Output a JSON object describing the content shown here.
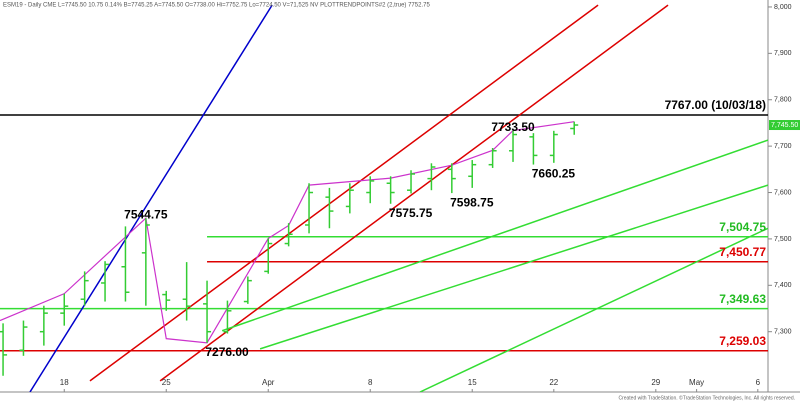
{
  "chart_data": {
    "type": "ohlc",
    "title": "ESM19 - Daily CME L=7745.50 10.75 0.14% B=7745.25 A=7745.50 O=7738.00 Hi=7752.75 Lo=7724.50 V=71,525 NV PLOTTRENDPOINTS#2 (2,true) 7752.75",
    "footer": "Created with TradeStation. ©TradeStation Technologies, Inc. All rights reserved.",
    "color": "#33cc33",
    "xlim": [
      -0.15,
      37.5
    ],
    "ylim": [
      7170,
      8015
    ],
    "xticks": [
      {
        "value": 3,
        "label": "18"
      },
      {
        "value": 8,
        "label": "25"
      },
      {
        "value": 13,
        "label": "Apr"
      },
      {
        "value": 18,
        "label": "8"
      },
      {
        "value": 23,
        "label": "15"
      },
      {
        "value": 27,
        "label": "22"
      },
      {
        "value": 32,
        "label": "29"
      },
      {
        "value": 34,
        "label": "May"
      },
      {
        "value": 37,
        "label": "6"
      }
    ],
    "yticks": [
      {
        "value": 8000,
        "label": "8,000"
      },
      {
        "value": 7900,
        "label": "7,900"
      },
      {
        "value": 7800,
        "label": "7,800"
      },
      {
        "value": 7700,
        "label": "7,700"
      },
      {
        "value": 7600,
        "label": "7,600"
      },
      {
        "value": 7500,
        "label": "7,500"
      },
      {
        "value": 7400,
        "label": "7,400"
      },
      {
        "value": 7300,
        "label": "7,300"
      }
    ],
    "x": [
      0,
      1,
      2,
      3,
      4,
      5,
      6,
      7,
      8,
      9,
      10,
      11,
      12,
      13,
      14,
      15,
      16,
      17,
      18,
      19,
      20,
      21,
      22,
      23,
      24,
      25,
      26,
      27,
      28
    ],
    "open": [
      7300,
      7260,
      7300,
      7340,
      7370,
      7405,
      7440,
      7470,
      7380,
      7370,
      7360,
      7300,
      7365,
      7430,
      7490,
      7530,
      7590,
      7570,
      7600,
      7620,
      7605,
      7630,
      7650,
      7635,
      7660,
      7690,
      7720,
      7680,
      7738
    ],
    "high": [
      7318,
      7324,
      7356,
      7382,
      7430,
      7452,
      7527,
      7544.75,
      7388,
      7450,
      7410,
      7367,
      7419,
      7501,
      7534,
      7620,
      7610,
      7620,
      7635,
      7635,
      7648,
      7663,
      7663,
      7670,
      7696,
      7733.5,
      7728,
      7733,
      7752.75
    ],
    "low": [
      7205,
      7248,
      7270,
      7313,
      7356,
      7365,
      7365,
      7356,
      7345,
      7324,
      7276,
      7296,
      7360,
      7425,
      7484,
      7512,
      7523,
      7555,
      7577,
      7575.75,
      7598,
      7605,
      7598.75,
      7610,
      7653,
      7666,
      7660.25,
      7664,
      7724.5
    ],
    "close": [
      7250,
      7310,
      7340,
      7355,
      7410,
      7445,
      7385,
      7530,
      7368,
      7355,
      7300,
      7345,
      7410,
      7490,
      7510,
      7600,
      7560,
      7605,
      7625,
      7600,
      7640,
      7655,
      7630,
      7660,
      7690,
      7725,
      7680,
      7725,
      7745.5
    ],
    "last_price": {
      "value": 7745.5,
      "label": "7,745.50",
      "color": "#33cc33"
    },
    "pivot_line": {
      "color": "#cc33cc",
      "x": [
        -0.15,
        3,
        7,
        8,
        10,
        13,
        14,
        15,
        19,
        22,
        24,
        25,
        28
      ],
      "y": [
        7324,
        7382,
        7544.75,
        7285,
        7276,
        7501,
        7529,
        7616,
        7631,
        7659,
        7691,
        7733.5,
        7752.75
      ]
    },
    "annotations": [
      {
        "label": "7544.75",
        "value": 7544.75
      },
      {
        "label": "7276.00",
        "value": 7276
      },
      {
        "label": "7575.75",
        "value": 7575.75
      },
      {
        "label": "7598.75",
        "value": 7598.75
      },
      {
        "label": "7660.25",
        "value": 7660.25
      },
      {
        "label": "7733.50",
        "value": 7733.5
      }
    ],
    "levels": [
      {
        "value": 7767,
        "label": "7767.00 (10/03/18)",
        "color": "#000000",
        "x_start": -0.15
      },
      {
        "value": 7504.75,
        "label": "7,504.75",
        "color": "#33dd33",
        "x_start": 10
      },
      {
        "value": 7450.77,
        "label": "7,450.77",
        "color": "#dd0000",
        "x_start": 10
      },
      {
        "value": 7349.63,
        "label": "7,349.63",
        "color": "#33dd33",
        "x_start": -0.15
      },
      {
        "value": 7259.03,
        "label": "7,259.03",
        "color": "#dd0000",
        "x_start": -0.15
      }
    ],
    "trendlines": [
      {
        "color": "#0000cc",
        "x": [
          1.32,
          13.19
        ],
        "y": [
          7170,
          8004
        ]
      },
      {
        "color": "#dd0000",
        "x": [
          4.26,
          29.17
        ],
        "y": [
          7194,
          8004
        ]
      },
      {
        "color": "#dd0000",
        "x": [
          7.7,
          32.6
        ],
        "y": [
          7194,
          8004
        ]
      },
      {
        "color": "#33dd33",
        "x": [
          10.74,
          37.5
        ],
        "y": [
          7302,
          7713
        ]
      },
      {
        "color": "#33dd33",
        "x": [
          12.6,
          37.5
        ],
        "y": [
          7263,
          7616
        ]
      },
      {
        "color": "#33dd33",
        "x": [
          20.44,
          37.5
        ],
        "y": [
          7170,
          7523
        ]
      }
    ]
  }
}
